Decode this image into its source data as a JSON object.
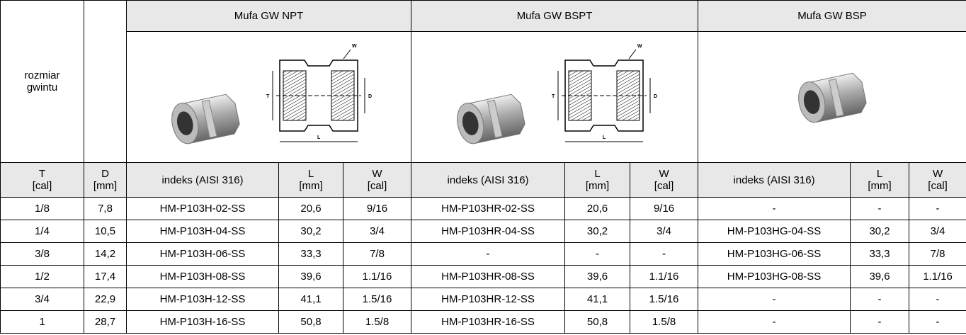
{
  "table": {
    "size_label": [
      "rozmiar",
      "gwintu"
    ],
    "groups": [
      "Mufa GW NPT",
      "Mufa GW BSPT",
      "Mufa GW BSP"
    ],
    "diagram_labels": {
      "w": "W",
      "t": "T",
      "d": "D",
      "l": "L"
    },
    "subheader": [
      [
        "T",
        "[cal]"
      ],
      [
        "D",
        "[mm]"
      ],
      [
        "indeks (AISI 316)"
      ],
      [
        "L",
        "[mm]"
      ],
      [
        "W",
        "[cal]"
      ],
      [
        "indeks (AISI 316)"
      ],
      [
        "L",
        "[mm]"
      ],
      [
        "W",
        "[cal]"
      ],
      [
        "indeks (AISI 316)"
      ],
      [
        "L",
        "[mm]"
      ],
      [
        "W",
        "[cal]"
      ]
    ],
    "rows": [
      [
        "1/8",
        "7,8",
        "HM-P103H-02-SS",
        "20,6",
        "9/16",
        "HM-P103HR-02-SS",
        "20,6",
        "9/16",
        "-",
        "-",
        "-"
      ],
      [
        "1/4",
        "10,5",
        "HM-P103H-04-SS",
        "30,2",
        "3/4",
        "HM-P103HR-04-SS",
        "30,2",
        "3/4",
        "HM-P103HG-04-SS",
        "30,2",
        "3/4"
      ],
      [
        "3/8",
        "14,2",
        "HM-P103H-06-SS",
        "33,3",
        "7/8",
        "-",
        "-",
        "-",
        "HM-P103HG-06-SS",
        "33,3",
        "7/8"
      ],
      [
        "1/2",
        "17,4",
        "HM-P103H-08-SS",
        "39,6",
        "1.1/16",
        "HM-P103HR-08-SS",
        "39,6",
        "1.1/16",
        "HM-P103HG-08-SS",
        "39,6",
        "1.1/16"
      ],
      [
        "3/4",
        "22,9",
        "HM-P103H-12-SS",
        "41,1",
        "1.5/16",
        "HM-P103HR-12-SS",
        "41,1",
        "1.5/16",
        "-",
        "-",
        "-"
      ],
      [
        "1",
        "28,7",
        "HM-P103H-16-SS",
        "50,8",
        "1.5/8",
        "HM-P103HR-16-SS",
        "50,8",
        "1.5/8",
        "-",
        "-",
        "-"
      ]
    ]
  }
}
